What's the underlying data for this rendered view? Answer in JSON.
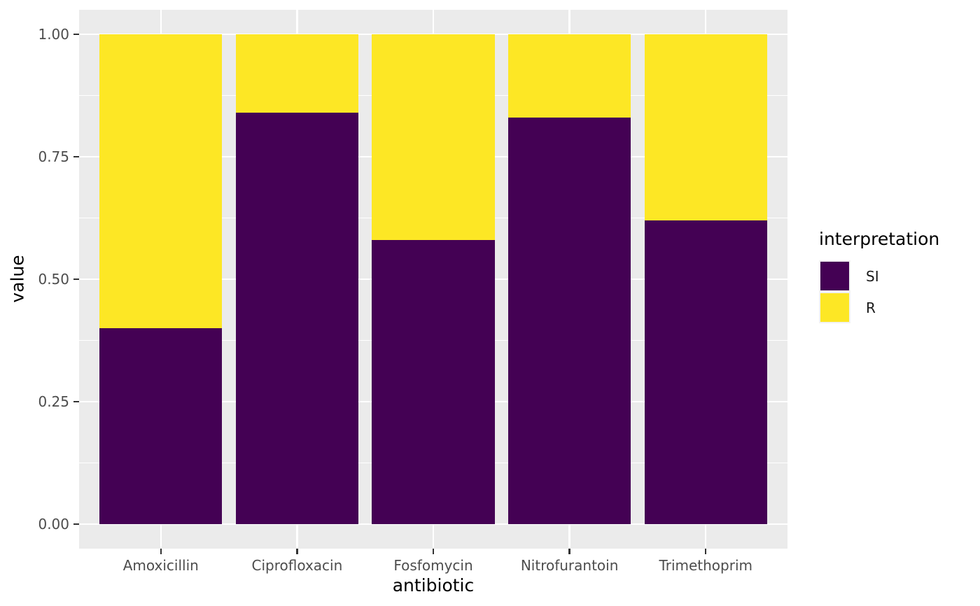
{
  "chart_data": {
    "type": "bar",
    "stacked": true,
    "orientation": "vertical",
    "xlabel": "antibiotic",
    "ylabel": "value",
    "categories": [
      "Amoxicillin",
      "Ciprofloxacin",
      "Fosfomycin",
      "Nitrofurantoin",
      "Trimethoprim"
    ],
    "series": [
      {
        "name": "SI",
        "color": "#440154",
        "values": [
          0.4,
          0.84,
          0.58,
          0.83,
          0.62
        ]
      },
      {
        "name": "R",
        "color": "#FDE725",
        "values": [
          0.6,
          0.16,
          0.42,
          0.17,
          0.38
        ]
      }
    ],
    "ylim": [
      0,
      1
    ],
    "y_ticks": [
      {
        "v": 0.0,
        "label": "0.00"
      },
      {
        "v": 0.25,
        "label": "0.25"
      },
      {
        "v": 0.5,
        "label": "0.50"
      },
      {
        "v": 0.75,
        "label": "0.75"
      },
      {
        "v": 1.0,
        "label": "1.00"
      }
    ],
    "y_minor": [
      0.125,
      0.375,
      0.625,
      0.875
    ],
    "grid": "on",
    "legend": {
      "title": "interpretation",
      "position": "right",
      "entries": [
        "SI",
        "R"
      ]
    }
  },
  "style": {
    "panel_bg": "#EBEBEB",
    "grid_color": "#FFFFFF",
    "tick_label_color": "#4D4D4D",
    "tick_mark_color": "#333333",
    "axis_title_color": "#000000",
    "legend_key_bg": "#F2F2F2",
    "background": "#FFFFFF"
  }
}
